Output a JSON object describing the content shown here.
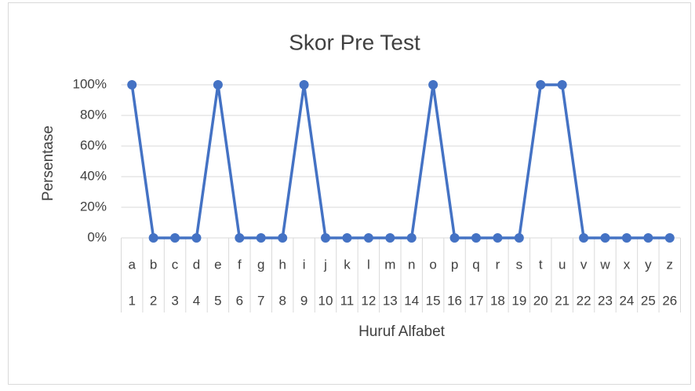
{
  "chart_data": {
    "type": "line",
    "title": "Skor Pre Test",
    "x_label": "Huruf Alfabet",
    "y_label": "Persentase",
    "categories": [
      "a",
      "b",
      "c",
      "d",
      "e",
      "f",
      "g",
      "h",
      "i",
      "j",
      "k",
      "l",
      "m",
      "n",
      "o",
      "p",
      "q",
      "r",
      "s",
      "t",
      "u",
      "v",
      "w",
      "x",
      "y",
      "z"
    ],
    "category_groups": [
      "1",
      "2",
      "3",
      "4",
      "5",
      "6",
      "7",
      "8",
      "9",
      "10",
      "11",
      "12",
      "13",
      "14",
      "15",
      "16",
      "17",
      "18",
      "19",
      "20",
      "21",
      "22",
      "23",
      "24",
      "25",
      "26"
    ],
    "series": [
      {
        "color": "#4472c4",
        "values": [
          100,
          0,
          0,
          0,
          100,
          0,
          0,
          0,
          100,
          0,
          0,
          0,
          0,
          0,
          100,
          0,
          0,
          0,
          0,
          100,
          100,
          0,
          0,
          0,
          0,
          0
        ]
      }
    ],
    "ylim": [
      0,
      100
    ],
    "yticks": [
      {
        "value": 0,
        "label": "0%"
      },
      {
        "value": 20,
        "label": "20%"
      },
      {
        "value": 40,
        "label": "40%"
      },
      {
        "value": 60,
        "label": "60%"
      },
      {
        "value": 80,
        "label": "80%"
      },
      {
        "value": 100,
        "label": "100%"
      }
    ],
    "grid": true
  }
}
